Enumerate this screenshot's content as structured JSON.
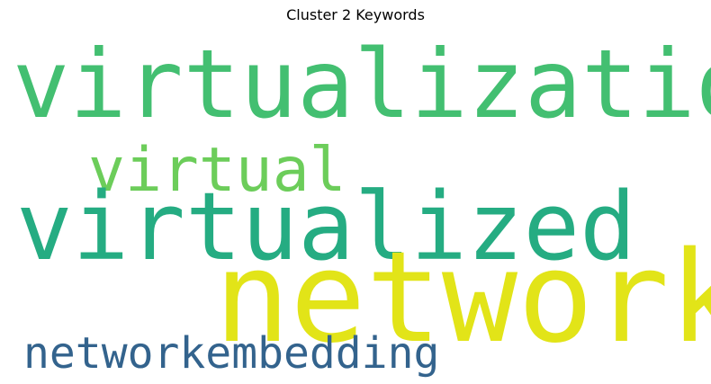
{
  "title": "Cluster 2 Keywords",
  "words": [
    {
      "text": "virtualization",
      "color": "#43bf71"
    },
    {
      "text": "virtual",
      "color": "#6ccd5a"
    },
    {
      "text": "virtualized",
      "color": "#25ac82"
    },
    {
      "text": "network",
      "color": "#e2e418"
    },
    {
      "text": "networkembedding",
      "color": "#33638d"
    }
  ]
}
